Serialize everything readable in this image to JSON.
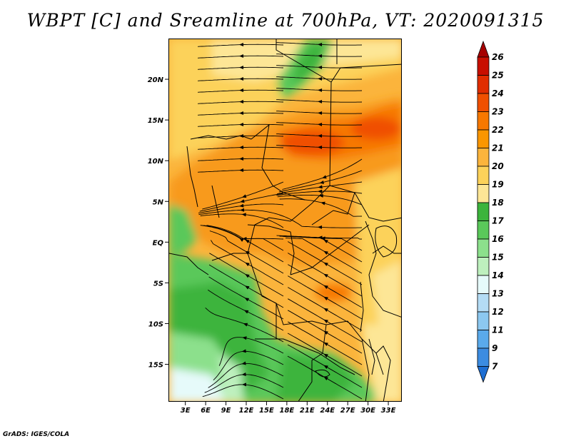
{
  "title": "WBPT [C] and Sreamline at 700hPa, VT: 2020091315",
  "footer": "GrADS: IGES/COLA",
  "map": {
    "lat_labels": [
      {
        "text": "20N",
        "value": 20
      },
      {
        "text": "15N",
        "value": 15
      },
      {
        "text": "10N",
        "value": 10
      },
      {
        "text": "5N",
        "value": 5
      },
      {
        "text": "EQ",
        "value": 0
      },
      {
        "text": "5S",
        "value": -5
      },
      {
        "text": "10S",
        "value": -10
      },
      {
        "text": "15S",
        "value": -15
      }
    ],
    "lon_labels": [
      {
        "text": "3E",
        "value": 3
      },
      {
        "text": "6E",
        "value": 6
      },
      {
        "text": "9E",
        "value": 9
      },
      {
        "text": "12E",
        "value": 12
      },
      {
        "text": "15E",
        "value": 15
      },
      {
        "text": "18E",
        "value": 18
      },
      {
        "text": "21E",
        "value": 21
      },
      {
        "text": "24E",
        "value": 24
      },
      {
        "text": "27E",
        "value": 27
      },
      {
        "text": "30E",
        "value": 30
      },
      {
        "text": "33E",
        "value": 33
      }
    ],
    "lat_range": [
      -19.6,
      25
    ],
    "lon_range": [
      0.5,
      35
    ]
  },
  "colorbar": {
    "labels": [
      "26",
      "25",
      "24",
      "23",
      "22",
      "21",
      "20",
      "19",
      "18",
      "17",
      "16",
      "15",
      "14",
      "13",
      "12",
      "11",
      "9",
      "7"
    ],
    "colors": [
      "#a50000",
      "#c80f00",
      "#e12d00",
      "#f05000",
      "#f77800",
      "#fa9600",
      "#fbb43c",
      "#fcd25a",
      "#fde696",
      "#3cb43c",
      "#5ac85a",
      "#8ce08c",
      "#bef0be",
      "#e6fafa",
      "#b4dcf5",
      "#8cc8f0",
      "#5aaaeb",
      "#3c8ce1",
      "#1e6ed2"
    ]
  }
}
